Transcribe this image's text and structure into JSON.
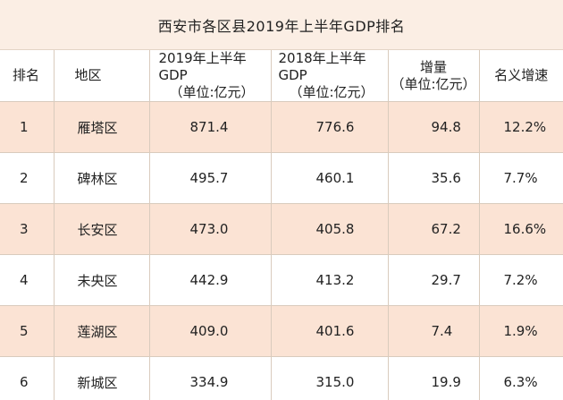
{
  "title": "西安市各区县2019年上半年GDP排名",
  "headers": {
    "rank": "排名",
    "area": "地区",
    "gdp2019_line1": "2019年上半年GDP",
    "gdp2019_line2": "（单位:亿元）",
    "gdp2018_line1": "2018年上半年GDP",
    "gdp2018_line2": "（单位:亿元）",
    "increase_line1": "增量",
    "increase_line2": "（单位:亿元）",
    "growth": "名义增速"
  },
  "rows": [
    {
      "rank": "1",
      "area": "雁塔区",
      "gdp2019": "871.4",
      "gdp2018": "776.6",
      "increase": "94.8",
      "growth": "12.2%"
    },
    {
      "rank": "2",
      "area": "碑林区",
      "gdp2019": "495.7",
      "gdp2018": "460.1",
      "increase": "35.6",
      "growth": "7.7%"
    },
    {
      "rank": "3",
      "area": "长安区",
      "gdp2019": "473.0",
      "gdp2018": "405.8",
      "increase": "67.2",
      "growth": "16.6%"
    },
    {
      "rank": "4",
      "area": "未央区",
      "gdp2019": "442.9",
      "gdp2018": "413.2",
      "increase": "29.7",
      "growth": "7.2%"
    },
    {
      "rank": "5",
      "area": "莲湖区",
      "gdp2019": "409.0",
      "gdp2018": "401.6",
      "increase": "7.4",
      "growth": "1.9%"
    },
    {
      "rank": "6",
      "area": "新城区",
      "gdp2019": "334.9",
      "gdp2018": "315.0",
      "increase": "19.9",
      "growth": "6.3%"
    }
  ],
  "colors": {
    "title_background": "#fbeee4",
    "odd_row_background": "#fbe3d4",
    "even_row_background": "#ffffff",
    "border": "#d9cbbd"
  }
}
